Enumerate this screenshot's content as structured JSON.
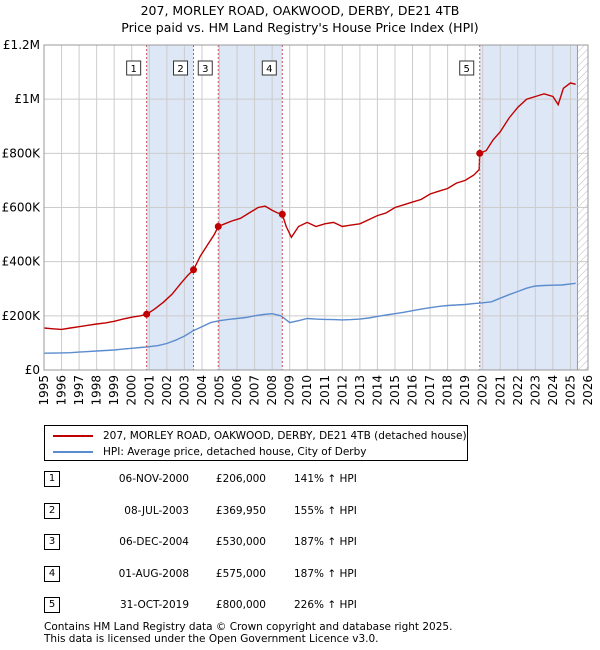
{
  "title_line1": "207, MORLEY ROAD, OAKWOOD, DERBY, DE21 4TB",
  "title_line2": "Price paid vs. HM Land Registry's House Price Index (HPI)",
  "colors": {
    "price_line": "#c00000",
    "hpi_line": "#5b8ccf",
    "highlight_band": "#dde7f6",
    "grid": "#cccccc",
    "marker_dash": "#d05050",
    "future_hatch": "#bbbbbb"
  },
  "chart_data": {
    "type": "line",
    "title": "Price paid vs. HM Land Registry's House Price Index (HPI)",
    "xlim": [
      1995,
      2026
    ],
    "ylim": [
      0,
      1200000
    ],
    "x_ticks": [
      1995,
      1996,
      1997,
      1998,
      1999,
      2000,
      2001,
      2002,
      2003,
      2004,
      2005,
      2006,
      2007,
      2008,
      2009,
      2010,
      2011,
      2012,
      2013,
      2014,
      2015,
      2016,
      2017,
      2018,
      2019,
      2020,
      2021,
      2022,
      2023,
      2024,
      2025,
      2026
    ],
    "y_ticks": [
      {
        "value": 0,
        "label": "£0"
      },
      {
        "value": 200000,
        "label": "£200K"
      },
      {
        "value": 400000,
        "label": "£400K"
      },
      {
        "value": 600000,
        "label": "£600K"
      },
      {
        "value": 800000,
        "label": "£800K"
      },
      {
        "value": 1000000,
        "label": "£1M"
      },
      {
        "value": 1200000,
        "label": "£1.2M"
      }
    ],
    "highlight_bands": [
      [
        2000.85,
        2003.52
      ],
      [
        2004.93,
        2008.58
      ],
      [
        2019.83,
        2025.4
      ]
    ],
    "hatch_start": 2025.4,
    "series": [
      {
        "name": "207, MORLEY ROAD, OAKWOOD, DERBY, DE21 4TB (detached house)",
        "x": [
          1995,
          1995.5,
          1996,
          1996.5,
          1997,
          1997.5,
          1998,
          1998.5,
          1999,
          1999.5,
          2000,
          2000.5,
          2000.85,
          2001.3,
          2001.8,
          2002.3,
          2002.8,
          2003.2,
          2003.52,
          2003.9,
          2004.3,
          2004.7,
          2004.93,
          2005.3,
          2005.7,
          2006.2,
          2006.7,
          2007.2,
          2007.6,
          2008,
          2008.3,
          2008.58,
          2008.8,
          2009.1,
          2009.5,
          2010,
          2010.5,
          2011,
          2011.5,
          2012,
          2012.5,
          2013,
          2013.5,
          2014,
          2014.5,
          2015,
          2015.5,
          2016,
          2016.5,
          2017,
          2017.5,
          2018,
          2018.5,
          2019,
          2019.5,
          2019.8,
          2019.83,
          2020.2,
          2020.6,
          2021,
          2021.5,
          2022,
          2022.5,
          2023,
          2023.5,
          2024,
          2024.3,
          2024.6,
          2025,
          2025.3
        ],
        "values": [
          155000,
          152000,
          150000,
          155000,
          160000,
          165000,
          170000,
          174000,
          180000,
          188000,
          195000,
          200000,
          206000,
          225000,
          250000,
          280000,
          320000,
          350000,
          369950,
          420000,
          460000,
          500000,
          530000,
          540000,
          550000,
          560000,
          580000,
          600000,
          605000,
          590000,
          580000,
          575000,
          530000,
          490000,
          530000,
          545000,
          530000,
          540000,
          545000,
          530000,
          535000,
          540000,
          555000,
          570000,
          580000,
          600000,
          610000,
          620000,
          630000,
          650000,
          660000,
          670000,
          690000,
          700000,
          720000,
          740000,
          800000,
          810000,
          850000,
          880000,
          930000,
          970000,
          1000000,
          1010000,
          1020000,
          1010000,
          980000,
          1040000,
          1060000,
          1055000
        ]
      },
      {
        "name": "HPI: Average price, detached house, City of Derby",
        "x": [
          1995,
          1995.5,
          1996,
          1996.5,
          1997,
          1997.5,
          1998,
          1998.5,
          1999,
          1999.5,
          2000,
          2000.5,
          2001,
          2001.5,
          2002,
          2002.5,
          2003,
          2003.5,
          2004,
          2004.5,
          2005,
          2005.5,
          2006,
          2006.5,
          2007,
          2007.5,
          2008,
          2008.5,
          2009,
          2009.5,
          2010,
          2010.5,
          2011,
          2011.5,
          2012,
          2012.5,
          2013,
          2013.5,
          2014,
          2014.5,
          2015,
          2015.5,
          2016,
          2016.5,
          2017,
          2017.5,
          2018,
          2018.5,
          2019,
          2019.5,
          2020,
          2020.5,
          2021,
          2021.5,
          2022,
          2022.5,
          2023,
          2023.5,
          2024,
          2024.5,
          2025,
          2025.3
        ],
        "values": [
          62000,
          62500,
          63000,
          64000,
          66000,
          68000,
          70000,
          72000,
          74000,
          77000,
          80000,
          83000,
          86000,
          90000,
          98000,
          110000,
          125000,
          145000,
          160000,
          175000,
          182000,
          187000,
          190000,
          194000,
          200000,
          205000,
          208000,
          200000,
          175000,
          182000,
          190000,
          188000,
          187000,
          186000,
          185000,
          186000,
          188000,
          192000,
          198000,
          203000,
          208000,
          213000,
          219000,
          225000,
          230000,
          235000,
          238000,
          240000,
          242000,
          245000,
          248000,
          252000,
          265000,
          278000,
          290000,
          302000,
          310000,
          312000,
          313000,
          314000,
          318000,
          320000
        ]
      }
    ],
    "sales": [
      {
        "id": "1",
        "x": 2000.85,
        "value": 206000
      },
      {
        "id": "2",
        "x": 2003.52,
        "value": 369950
      },
      {
        "id": "3",
        "x": 2004.93,
        "value": 530000
      },
      {
        "id": "4",
        "x": 2008.58,
        "value": 575000
      },
      {
        "id": "5",
        "x": 2019.83,
        "value": 800000
      }
    ]
  },
  "legend": {
    "price_label": "207, MORLEY ROAD, OAKWOOD, DERBY, DE21 4TB (detached house)",
    "hpi_label": "HPI: Average price, detached house, City of Derby"
  },
  "sales_table": [
    {
      "id": "1",
      "date": "06-NOV-2000",
      "price": "£206,000",
      "hpi": "141% ↑ HPI"
    },
    {
      "id": "2",
      "date": "08-JUL-2003",
      "price": "£369,950",
      "hpi": "155% ↑ HPI"
    },
    {
      "id": "3",
      "date": "06-DEC-2004",
      "price": "£530,000",
      "hpi": "187% ↑ HPI"
    },
    {
      "id": "4",
      "date": "01-AUG-2008",
      "price": "£575,000",
      "hpi": "187% ↑ HPI"
    },
    {
      "id": "5",
      "date": "31-OCT-2019",
      "price": "£800,000",
      "hpi": "226% ↑ HPI"
    }
  ],
  "footer": {
    "line1": "Contains HM Land Registry data © Crown copyright and database right 2025.",
    "line2": "This data is licensed under the Open Government Licence v3.0."
  }
}
